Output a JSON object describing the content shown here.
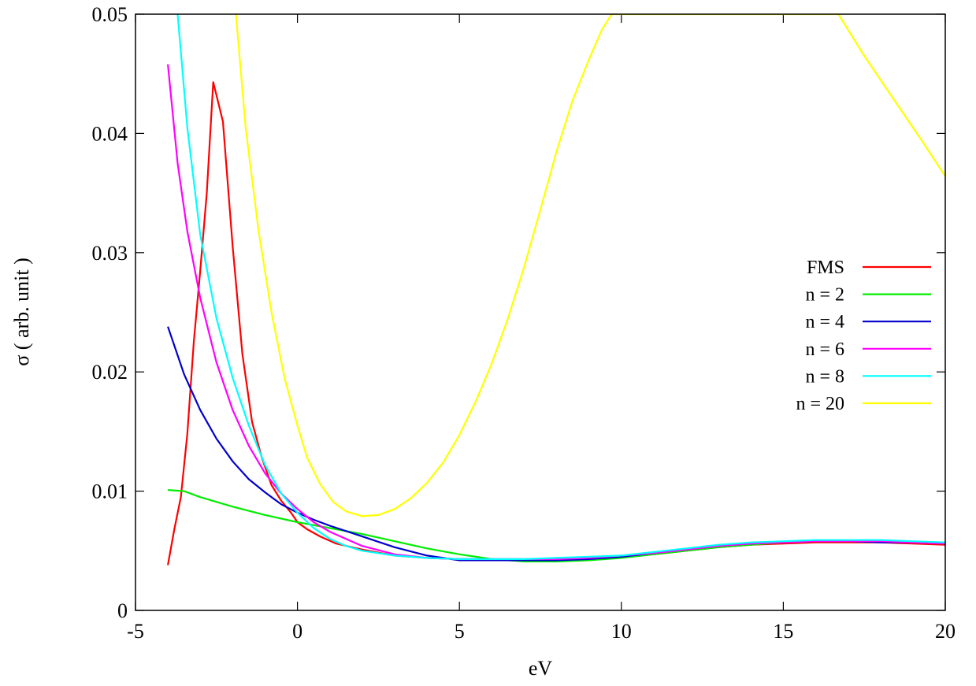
{
  "chart_data": {
    "type": "line",
    "xlabel": "eV",
    "ylabel": "σ ( arb. unit )",
    "xlim": [
      -5,
      20
    ],
    "ylim": [
      0,
      0.05
    ],
    "xticks": [
      "-5",
      "0",
      "5",
      "10",
      "15",
      "20"
    ],
    "yticks": [
      "0",
      "0.01",
      "0.02",
      "0.03",
      "0.04",
      "0.05"
    ],
    "grid": false,
    "legend_position": "right",
    "series": [
      {
        "name": "FMS",
        "color": "#ff0000",
        "points": [
          [
            -4.0,
            0.0038
          ],
          [
            -3.8,
            0.0068
          ],
          [
            -3.6,
            0.0095
          ],
          [
            -3.4,
            0.0148
          ],
          [
            -3.2,
            0.0225
          ],
          [
            -3.0,
            0.0285
          ],
          [
            -2.8,
            0.035
          ],
          [
            -2.6,
            0.0443
          ],
          [
            -2.3,
            0.041
          ],
          [
            -2.0,
            0.0305
          ],
          [
            -1.7,
            0.0215
          ],
          [
            -1.4,
            0.0158
          ],
          [
            -1.1,
            0.0128
          ],
          [
            -0.8,
            0.0105
          ],
          [
            -0.5,
            0.0092
          ],
          [
            -0.2,
            0.0082
          ],
          [
            0.0,
            0.0074
          ],
          [
            0.3,
            0.0068
          ],
          [
            0.7,
            0.0062
          ],
          [
            1.2,
            0.0056
          ],
          [
            2.0,
            0.0051
          ],
          [
            3.0,
            0.0046
          ],
          [
            4.0,
            0.0044
          ],
          [
            5.0,
            0.0043
          ],
          [
            6.0,
            0.0043
          ],
          [
            7.0,
            0.0042
          ],
          [
            8.0,
            0.0042
          ],
          [
            9.0,
            0.0043
          ],
          [
            10.0,
            0.0045
          ],
          [
            11.0,
            0.0047
          ],
          [
            12.0,
            0.005
          ],
          [
            13.0,
            0.0053
          ],
          [
            14.0,
            0.0055
          ],
          [
            15.0,
            0.0056
          ],
          [
            16.0,
            0.0057
          ],
          [
            17.0,
            0.0057
          ],
          [
            18.0,
            0.0057
          ],
          [
            19.0,
            0.0056
          ],
          [
            20.0,
            0.0055
          ]
        ]
      },
      {
        "name": "n = 2",
        "color": "#00ee00",
        "points": [
          [
            -4.0,
            0.0101
          ],
          [
            -3.5,
            0.01
          ],
          [
            -3.0,
            0.0095
          ],
          [
            -2.0,
            0.0087
          ],
          [
            -1.0,
            0.008
          ],
          [
            0.0,
            0.0074
          ],
          [
            1.0,
            0.0069
          ],
          [
            2.0,
            0.0064
          ],
          [
            3.0,
            0.0058
          ],
          [
            4.0,
            0.0052
          ],
          [
            5.0,
            0.0047
          ],
          [
            6.0,
            0.0043
          ],
          [
            7.0,
            0.0041
          ],
          [
            8.0,
            0.0041
          ],
          [
            9.0,
            0.0042
          ],
          [
            10.0,
            0.0044
          ],
          [
            11.0,
            0.0047
          ],
          [
            12.0,
            0.005
          ],
          [
            13.0,
            0.0053
          ],
          [
            14.0,
            0.0055
          ],
          [
            15.0,
            0.0057
          ],
          [
            16.0,
            0.0058
          ],
          [
            17.0,
            0.0058
          ],
          [
            18.0,
            0.0058
          ],
          [
            19.0,
            0.0057
          ],
          [
            20.0,
            0.0056
          ]
        ]
      },
      {
        "name": "n = 4",
        "color": "#0000cc",
        "points": [
          [
            -4.0,
            0.0238
          ],
          [
            -3.5,
            0.0198
          ],
          [
            -3.0,
            0.0168
          ],
          [
            -2.5,
            0.0144
          ],
          [
            -2.0,
            0.0125
          ],
          [
            -1.5,
            0.011
          ],
          [
            -1.0,
            0.0099
          ],
          [
            -0.5,
            0.0089
          ],
          [
            0.0,
            0.0082
          ],
          [
            0.5,
            0.0076
          ],
          [
            1.0,
            0.0071
          ],
          [
            2.0,
            0.0062
          ],
          [
            3.0,
            0.0053
          ],
          [
            4.0,
            0.0046
          ],
          [
            5.0,
            0.0042
          ],
          [
            6.0,
            0.0042
          ],
          [
            7.0,
            0.0042
          ],
          [
            8.0,
            0.0042
          ],
          [
            9.0,
            0.0043
          ],
          [
            10.0,
            0.0045
          ],
          [
            11.0,
            0.0048
          ],
          [
            12.0,
            0.0051
          ],
          [
            13.0,
            0.0054
          ],
          [
            14.0,
            0.0056
          ],
          [
            15.0,
            0.0057
          ],
          [
            16.0,
            0.0058
          ],
          [
            17.0,
            0.0058
          ],
          [
            18.0,
            0.0057
          ],
          [
            19.0,
            0.0057
          ],
          [
            20.0,
            0.0056
          ]
        ]
      },
      {
        "name": "n = 6",
        "color": "#ff00ff",
        "points": [
          [
            -4.0,
            0.0458
          ],
          [
            -3.7,
            0.0375
          ],
          [
            -3.4,
            0.0318
          ],
          [
            -3.0,
            0.0262
          ],
          [
            -2.5,
            0.0208
          ],
          [
            -2.0,
            0.0168
          ],
          [
            -1.5,
            0.0138
          ],
          [
            -1.0,
            0.0115
          ],
          [
            -0.5,
            0.0098
          ],
          [
            0.0,
            0.0085
          ],
          [
            0.5,
            0.0074
          ],
          [
            1.0,
            0.0066
          ],
          [
            1.5,
            0.006
          ],
          [
            2.0,
            0.0054
          ],
          [
            3.0,
            0.0047
          ],
          [
            4.0,
            0.0044
          ],
          [
            5.0,
            0.0043
          ],
          [
            6.0,
            0.0043
          ],
          [
            7.0,
            0.0043
          ],
          [
            8.0,
            0.0043
          ],
          [
            9.0,
            0.0044
          ],
          [
            10.0,
            0.0046
          ],
          [
            11.0,
            0.0048
          ],
          [
            12.0,
            0.0051
          ],
          [
            13.0,
            0.0054
          ],
          [
            14.0,
            0.0056
          ],
          [
            15.0,
            0.0057
          ],
          [
            16.0,
            0.0058
          ],
          [
            17.0,
            0.0058
          ],
          [
            18.0,
            0.0058
          ],
          [
            19.0,
            0.0057
          ],
          [
            20.0,
            0.0056
          ]
        ]
      },
      {
        "name": "n = 8",
        "color": "#00ffff",
        "points": [
          [
            -3.7,
            0.05
          ],
          [
            -3.4,
            0.0405
          ],
          [
            -3.0,
            0.0315
          ],
          [
            -2.5,
            0.0245
          ],
          [
            -2.0,
            0.0195
          ],
          [
            -1.5,
            0.0155
          ],
          [
            -1.0,
            0.0122
          ],
          [
            -0.5,
            0.0098
          ],
          [
            0.0,
            0.0082
          ],
          [
            0.5,
            0.0069
          ],
          [
            1.0,
            0.006
          ],
          [
            1.5,
            0.0054
          ],
          [
            2.0,
            0.005
          ],
          [
            3.0,
            0.0046
          ],
          [
            4.0,
            0.0044
          ],
          [
            5.0,
            0.0043
          ],
          [
            6.0,
            0.0043
          ],
          [
            7.0,
            0.0043
          ],
          [
            8.0,
            0.0044
          ],
          [
            9.0,
            0.0045
          ],
          [
            10.0,
            0.0046
          ],
          [
            11.0,
            0.0049
          ],
          [
            12.0,
            0.0052
          ],
          [
            13.0,
            0.0055
          ],
          [
            14.0,
            0.0057
          ],
          [
            15.0,
            0.0058
          ],
          [
            16.0,
            0.0059
          ],
          [
            17.0,
            0.0059
          ],
          [
            18.0,
            0.0059
          ],
          [
            19.0,
            0.0058
          ],
          [
            20.0,
            0.0057
          ]
        ]
      },
      {
        "name": "n = 20",
        "color": "#ffff00",
        "points": [
          [
            -1.9,
            0.05
          ],
          [
            -1.6,
            0.0405
          ],
          [
            -1.2,
            0.0318
          ],
          [
            -0.8,
            0.025
          ],
          [
            -0.4,
            0.0195
          ],
          [
            0.0,
            0.0155
          ],
          [
            0.3,
            0.0128
          ],
          [
            0.7,
            0.0106
          ],
          [
            1.1,
            0.0091
          ],
          [
            1.5,
            0.0083
          ],
          [
            2.0,
            0.0079
          ],
          [
            2.5,
            0.008
          ],
          [
            3.0,
            0.0085
          ],
          [
            3.5,
            0.0094
          ],
          [
            4.0,
            0.0107
          ],
          [
            4.5,
            0.0124
          ],
          [
            5.0,
            0.0147
          ],
          [
            5.5,
            0.0175
          ],
          [
            6.0,
            0.0207
          ],
          [
            6.5,
            0.0245
          ],
          [
            7.0,
            0.0288
          ],
          [
            7.5,
            0.0336
          ],
          [
            8.0,
            0.0385
          ],
          [
            8.5,
            0.0428
          ],
          [
            9.0,
            0.0462
          ],
          [
            9.4,
            0.0487
          ],
          [
            9.7,
            0.05
          ],
          [
            16.7,
            0.05
          ],
          [
            17.5,
            0.0465
          ],
          [
            18.5,
            0.0425
          ],
          [
            19.3,
            0.0393
          ],
          [
            20.0,
            0.0364
          ]
        ]
      }
    ]
  }
}
